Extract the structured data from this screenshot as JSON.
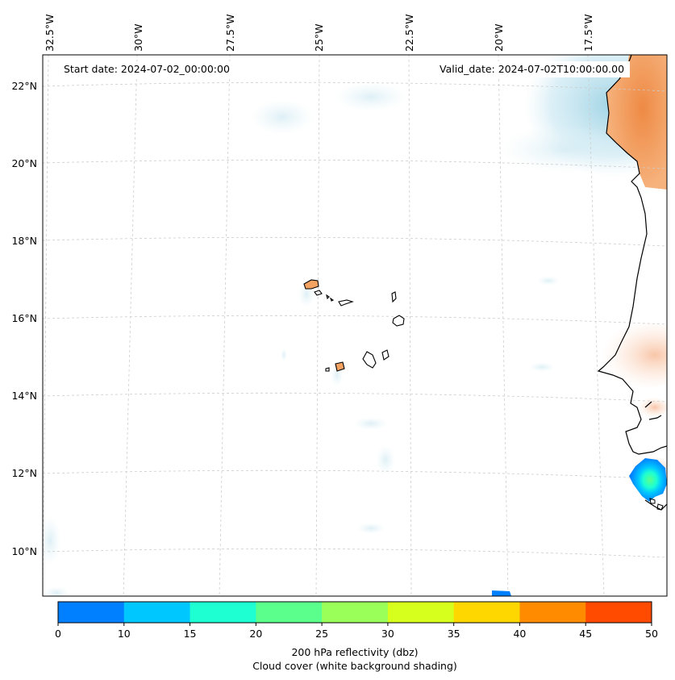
{
  "header": {
    "start_date": "Start date: 2024-07-02_00:00:00",
    "valid_date": "Valid_date: 2024-07-02T10:00:00.00"
  },
  "axes": {
    "lon_labels": [
      "32.5°W",
      "30°W",
      "27.5°W",
      "25°W",
      "22.5°W",
      "20°W",
      "17.5°W"
    ],
    "lat_labels": [
      "22°N",
      "20°N",
      "18°N",
      "16°N",
      "14°N",
      "12°N",
      "10°N"
    ]
  },
  "colorbar": {
    "ticks": [
      "0",
      "10",
      "15",
      "20",
      "25",
      "30",
      "35",
      "40",
      "45",
      "50"
    ],
    "colors": [
      "#0080ff",
      "#00c8ff",
      "#1effd2",
      "#5aff8c",
      "#9bff5a",
      "#d7ff1e",
      "#ffd700",
      "#ff8c00",
      "#ff4b00"
    ],
    "label_line1": "200 hPa reflectivity (dbz)",
    "label_line2": "Cloud cover (white background shading)"
  },
  "colors": {
    "land_fill": "#f4a261",
    "cloud_fill": "#a8d8e8",
    "coastline": "#000000",
    "grid": "#cccccc"
  }
}
